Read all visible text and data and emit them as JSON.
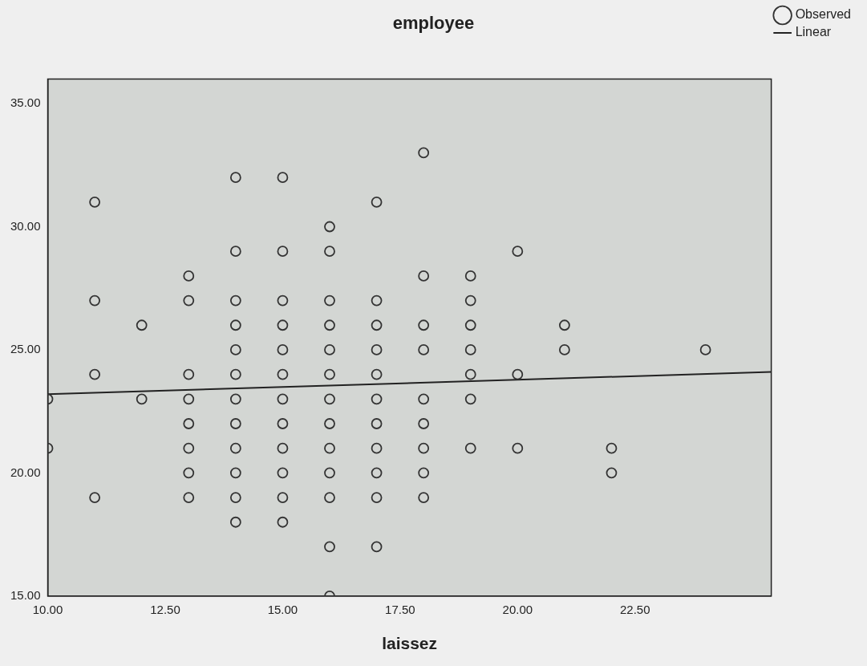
{
  "chart_data": {
    "type": "scatter",
    "title": "employee",
    "xlabel": "laissez",
    "xlim": [
      10,
      25.4
    ],
    "ylim": [
      15,
      36
    ],
    "xticks": [
      {
        "value": 10,
        "label": "10.00"
      },
      {
        "value": 12.5,
        "label": "12.50"
      },
      {
        "value": 15,
        "label": "15.00"
      },
      {
        "value": 17.5,
        "label": "17.50"
      },
      {
        "value": 20,
        "label": "20.00"
      },
      {
        "value": 22.5,
        "label": "22.50"
      }
    ],
    "yticks": [
      {
        "value": 15,
        "label": "15.00"
      },
      {
        "value": 20,
        "label": "20.00"
      },
      {
        "value": 25,
        "label": "25.00"
      },
      {
        "value": 30,
        "label": "30.00"
      },
      {
        "value": 35,
        "label": "35.00"
      }
    ],
    "grid": false,
    "legend": "top right",
    "marker": "circle",
    "series": [
      {
        "name": "Observed",
        "type": "scatter",
        "color": "#333333",
        "x": [
          10,
          10,
          11,
          11,
          11,
          11,
          12,
          12,
          13,
          13,
          13,
          13,
          13,
          13,
          13,
          13,
          14,
          14,
          14,
          14,
          14,
          14,
          14,
          14,
          14,
          14,
          14,
          14,
          15,
          15,
          15,
          15,
          15,
          15,
          15,
          15,
          15,
          15,
          15,
          15,
          16,
          16,
          16,
          16,
          16,
          16,
          16,
          16,
          16,
          16,
          16,
          16,
          16,
          17,
          17,
          17,
          17,
          17,
          17,
          17,
          17,
          17,
          17,
          17,
          18,
          18,
          18,
          18,
          18,
          18,
          18,
          18,
          18,
          19,
          19,
          19,
          19,
          19,
          19,
          19,
          20,
          20,
          20,
          21,
          21,
          22,
          22,
          24
        ],
        "values": [
          23,
          21,
          31,
          27,
          24,
          19,
          26,
          23,
          28,
          27,
          24,
          23,
          22,
          21,
          20,
          19,
          32,
          29,
          27,
          26,
          25,
          24,
          23,
          22,
          21,
          20,
          19,
          18,
          32,
          29,
          27,
          26,
          25,
          24,
          23,
          22,
          21,
          20,
          19,
          18,
          30,
          29,
          27,
          26,
          25,
          24,
          23,
          22,
          21,
          20,
          19,
          17,
          15,
          31,
          27,
          26,
          25,
          24,
          23,
          22,
          21,
          20,
          19,
          17,
          33,
          28,
          26,
          25,
          23,
          22,
          21,
          20,
          19,
          28,
          27,
          26,
          25,
          24,
          23,
          21,
          29,
          24,
          21,
          26,
          25,
          21,
          20,
          25
        ]
      },
      {
        "name": "Linear",
        "type": "line",
        "color": "#222222",
        "line_style": "solid",
        "marker": "none",
        "x": [
          10,
          25.4
        ],
        "values": [
          23.2,
          24.1
        ]
      }
    ]
  }
}
